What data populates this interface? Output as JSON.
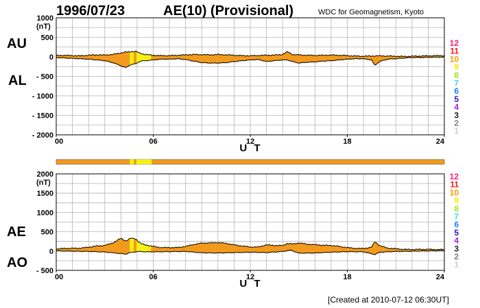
{
  "header": {
    "date": "1996/07/23",
    "title": "AE(10) (Provisional)",
    "credit": "WDC for Geomagnetism, Kyoto"
  },
  "footer": {
    "created": "[Created at 2010-07-12 06:30UT]"
  },
  "activity_legend": {
    "levels": [
      {
        "label": "12",
        "color": "#ff1a7a"
      },
      {
        "label": "11",
        "color": "#ff1a1a"
      },
      {
        "label": "10",
        "color": "#ff9900"
      },
      {
        "label": "9",
        "color": "#ffe600"
      },
      {
        "label": "8",
        "color": "#a6e619"
      },
      {
        "label": "7",
        "color": "#33d9f2"
      },
      {
        "label": "6",
        "color": "#1a80ff"
      },
      {
        "label": "5",
        "color": "#3311cc"
      },
      {
        "label": "4",
        "color": "#b31ad9"
      },
      {
        "label": "3",
        "color": "#222222"
      },
      {
        "label": "2",
        "color": "#808080"
      },
      {
        "label": "1",
        "color": "#cccccc"
      }
    ]
  },
  "colors": {
    "fill_orange": "#f39a1d",
    "fill_yellow": "#f7f013",
    "envelope": "#000000",
    "activity_bar": "#f39a1d"
  },
  "chart_data": [
    {
      "type": "area",
      "panel": "upper",
      "side_labels": [
        "AU",
        "AL"
      ],
      "ylabel": "(nT)",
      "xlabel": "U T",
      "xlim": [
        0,
        24
      ],
      "ylim": [
        -2000,
        1000
      ],
      "yticks": [
        1000,
        500,
        0,
        -500,
        -1000,
        -1500,
        -2000
      ],
      "ytick_labels": [
        "1000",
        "500",
        "0",
        "- 500",
        "- 1000",
        "- 1500",
        "- 2000"
      ],
      "xticks": [
        0,
        6,
        12,
        18,
        24
      ],
      "xtick_labels": [
        "00",
        "06",
        "12",
        "18",
        "24"
      ],
      "grid": true,
      "series": [
        {
          "key": "AU",
          "x": [
            0,
            0.5,
            1,
            1.5,
            2,
            2.5,
            3,
            3.5,
            4,
            4.3,
            4.6,
            4.9,
            5.2,
            5.5,
            6,
            6.5,
            7,
            7.5,
            8,
            8.5,
            9,
            9.5,
            10,
            10.5,
            11,
            11.5,
            12,
            12.5,
            13,
            13.5,
            14,
            14.3,
            14.6,
            15,
            15.5,
            16,
            16.5,
            17,
            17.5,
            18,
            18.5,
            19,
            19.5,
            20,
            20.5,
            21,
            21.5,
            22,
            22.5,
            23,
            23.5,
            24
          ],
          "values": [
            30,
            40,
            30,
            25,
            40,
            50,
            45,
            60,
            100,
            120,
            130,
            140,
            90,
            60,
            40,
            30,
            30,
            40,
            50,
            60,
            55,
            50,
            60,
            50,
            40,
            30,
            25,
            35,
            40,
            45,
            60,
            130,
            60,
            50,
            40,
            35,
            40,
            45,
            40,
            30,
            20,
            15,
            20,
            25,
            20,
            15,
            10,
            15,
            20,
            25,
            30,
            30
          ]
        },
        {
          "key": "AL",
          "x": [
            0,
            0.5,
            1,
            1.5,
            2,
            2.5,
            3,
            3.5,
            4,
            4.3,
            4.6,
            4.9,
            5.2,
            5.5,
            6,
            6.5,
            7,
            7.5,
            8,
            8.5,
            9,
            9.5,
            10,
            10.5,
            11,
            11.5,
            12,
            12.5,
            13,
            13.5,
            14,
            14.3,
            14.6,
            15,
            15.5,
            16,
            16.5,
            17,
            17.5,
            18,
            18.5,
            19,
            19.5,
            19.7,
            20,
            20.5,
            21,
            21.5,
            22,
            22.5,
            23,
            23.5,
            24
          ],
          "values": [
            -20,
            -30,
            -40,
            -50,
            -60,
            -80,
            -100,
            -150,
            -230,
            -280,
            -200,
            -180,
            -110,
            -100,
            -80,
            -60,
            -60,
            -50,
            -70,
            -110,
            -150,
            -160,
            -160,
            -150,
            -120,
            -100,
            -80,
            -70,
            -120,
            -100,
            -80,
            -80,
            -120,
            -160,
            -140,
            -130,
            -110,
            -100,
            -80,
            -60,
            -50,
            -50,
            -80,
            -220,
            -120,
            -60,
            -50,
            -30,
            -20,
            -20,
            -15,
            -10,
            -10
          ]
        }
      ]
    },
    {
      "type": "area",
      "panel": "lower",
      "side_labels": [
        "AE",
        "AO"
      ],
      "ylabel": "(nT)",
      "xlabel": "U T",
      "xlim": [
        0,
        24
      ],
      "ylim": [
        -500,
        2000
      ],
      "yticks": [
        2000,
        1500,
        1000,
        500,
        0,
        -500
      ],
      "ytick_labels": [
        "2000",
        "1500",
        "1000",
        "500",
        "0",
        "- 500"
      ],
      "xticks": [
        0,
        6,
        12,
        18,
        24
      ],
      "xtick_labels": [
        "00",
        "06",
        "12",
        "18",
        "24"
      ],
      "grid": true,
      "series": [
        {
          "key": "AE",
          "x": [
            0,
            0.5,
            1,
            1.5,
            2,
            2.5,
            3,
            3.5,
            4,
            4.3,
            4.6,
            4.9,
            5.2,
            5.5,
            6,
            6.5,
            7,
            7.5,
            8,
            8.5,
            9,
            9.5,
            10,
            10.5,
            11,
            11.5,
            12,
            12.5,
            13,
            13.5,
            14,
            14.3,
            14.6,
            15,
            15.5,
            16,
            16.5,
            17,
            17.5,
            18,
            18.5,
            19,
            19.5,
            19.7,
            20,
            20.5,
            21,
            21.5,
            22,
            22.5,
            23,
            23.5,
            24
          ],
          "values": [
            50,
            70,
            70,
            75,
            100,
            130,
            145,
            210,
            330,
            260,
            330,
            320,
            200,
            160,
            120,
            90,
            90,
            90,
            120,
            170,
            205,
            210,
            220,
            200,
            160,
            130,
            105,
            105,
            160,
            145,
            140,
            200,
            180,
            210,
            180,
            165,
            150,
            145,
            120,
            90,
            70,
            65,
            100,
            245,
            140,
            75,
            60,
            45,
            40,
            45,
            45,
            40,
            40
          ]
        },
        {
          "key": "AO",
          "x": [
            0,
            1,
            2,
            3,
            3.5,
            4,
            4.3,
            4.6,
            4.9,
            5.2,
            5.5,
            6,
            7,
            8,
            9,
            10,
            11,
            12,
            13,
            14,
            14.5,
            15,
            16,
            17,
            18,
            19,
            19.7,
            20,
            21,
            22,
            23,
            24
          ],
          "values": [
            5,
            -5,
            -10,
            -25,
            -45,
            -65,
            -80,
            -35,
            -20,
            -10,
            -20,
            -20,
            -15,
            -10,
            -45,
            -50,
            -40,
            -30,
            -40,
            -10,
            25,
            -55,
            -50,
            -30,
            -15,
            -20,
            -90,
            -30,
            -10,
            -5,
            5,
            10
          ]
        }
      ],
      "activity_bar": true
    }
  ]
}
